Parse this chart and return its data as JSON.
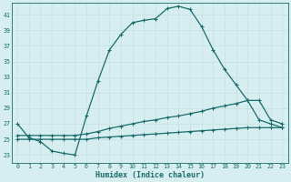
{
  "xlabel": "Humidex (Indice chaleur)",
  "bg_color": "#d6eef0",
  "grid_color": "#b8d8db",
  "line_color": "#1a6b6b",
  "xlim": [
    -0.5,
    23.5
  ],
  "ylim": [
    22.0,
    42.5
  ],
  "yticks": [
    23,
    25,
    27,
    29,
    31,
    33,
    35,
    37,
    39,
    41
  ],
  "xticks": [
    0,
    1,
    2,
    3,
    4,
    5,
    6,
    7,
    8,
    9,
    10,
    11,
    12,
    13,
    14,
    15,
    16,
    17,
    18,
    19,
    20,
    21,
    22,
    23
  ],
  "curve1_x": [
    0,
    1,
    2,
    3,
    4,
    5,
    6,
    7,
    8,
    9,
    10,
    11,
    12,
    13,
    14,
    15,
    16,
    17,
    18,
    19,
    20,
    21,
    22,
    23
  ],
  "curve1_y": [
    27.0,
    25.2,
    24.7,
    23.5,
    23.2,
    23.0,
    28.0,
    32.5,
    36.5,
    38.5,
    40.0,
    40.3,
    40.5,
    41.8,
    42.1,
    41.7,
    39.5,
    36.5,
    34.0,
    32.0,
    30.0,
    27.5,
    27.0,
    26.5
  ],
  "curve2_x": [
    0,
    1,
    2,
    3,
    4,
    5,
    6,
    7,
    8,
    9,
    10,
    11,
    12,
    13,
    14,
    15,
    16,
    17,
    18,
    19,
    20,
    21,
    22,
    23
  ],
  "curve2_y": [
    25.5,
    25.5,
    25.5,
    25.5,
    25.5,
    25.5,
    25.7,
    26.0,
    26.4,
    26.7,
    27.0,
    27.3,
    27.5,
    27.8,
    28.0,
    28.3,
    28.6,
    29.0,
    29.3,
    29.6,
    30.0,
    30.0,
    27.5,
    27.0
  ],
  "curve3_x": [
    0,
    1,
    2,
    3,
    4,
    5,
    6,
    7,
    8,
    9,
    10,
    11,
    12,
    13,
    14,
    15,
    16,
    17,
    18,
    19,
    20,
    21,
    22,
    23
  ],
  "curve3_y": [
    25.0,
    25.0,
    25.0,
    25.0,
    25.0,
    25.0,
    25.0,
    25.2,
    25.3,
    25.4,
    25.5,
    25.6,
    25.7,
    25.8,
    25.9,
    26.0,
    26.1,
    26.2,
    26.3,
    26.4,
    26.5,
    26.5,
    26.5,
    26.5
  ]
}
